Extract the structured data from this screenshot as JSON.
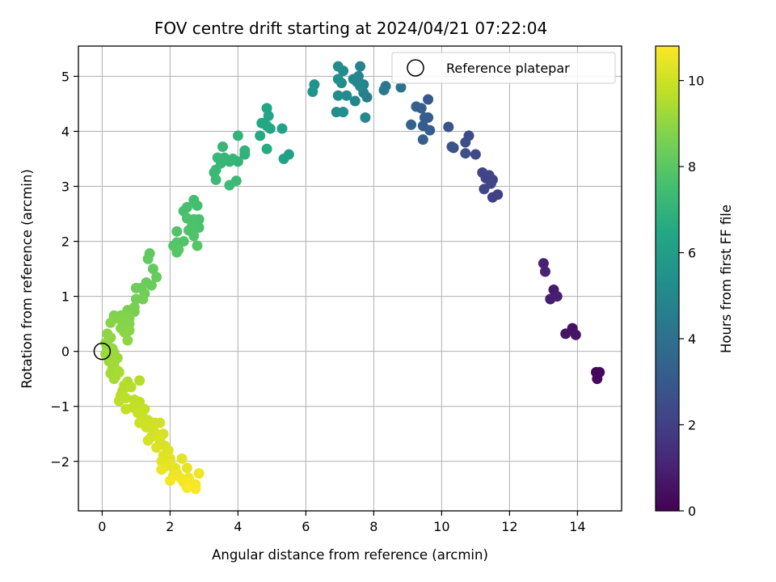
{
  "chart_data": {
    "type": "scatter",
    "title": "FOV centre drift starting at 2024/04/21 07:22:04",
    "xlabel": "Angular distance from reference (arcmin)",
    "ylabel": "Rotation from reference (arcmin)",
    "xlim": [
      -0.7,
      15.3
    ],
    "ylim": [
      -2.9,
      5.55
    ],
    "xticks": [
      0,
      2,
      4,
      6,
      8,
      10,
      12,
      14
    ],
    "yticks": [
      -2,
      -1,
      0,
      1,
      2,
      3,
      4,
      5
    ],
    "grid": true,
    "legend": {
      "position": "top-right",
      "label": "Reference platepar"
    },
    "reference_point": {
      "x": 0,
      "y": 0
    },
    "colorbar": {
      "label": "Hours from first FF file",
      "range": [
        0,
        10.8
      ],
      "ticks": [
        0,
        2,
        4,
        6,
        8,
        10
      ],
      "colormap": "viridis"
    },
    "points": [
      {
        "x": 14.55,
        "y": -0.38,
        "c": 0.2
      },
      {
        "x": 14.65,
        "y": -0.38,
        "c": 0.2
      },
      {
        "x": 14.58,
        "y": -0.5,
        "c": 0.25
      },
      {
        "x": 13.85,
        "y": 0.42,
        "c": 0.5
      },
      {
        "x": 13.95,
        "y": 0.3,
        "c": 0.55
      },
      {
        "x": 13.65,
        "y": 0.32,
        "c": 0.6
      },
      {
        "x": 13.3,
        "y": 1.12,
        "c": 0.8
      },
      {
        "x": 13.2,
        "y": 0.95,
        "c": 0.85
      },
      {
        "x": 13.4,
        "y": 1.0,
        "c": 0.9
      },
      {
        "x": 13.0,
        "y": 1.6,
        "c": 1.0
      },
      {
        "x": 13.05,
        "y": 1.45,
        "c": 1.05
      },
      {
        "x": 11.65,
        "y": 2.85,
        "c": 2.0
      },
      {
        "x": 11.5,
        "y": 2.8,
        "c": 2.05
      },
      {
        "x": 11.5,
        "y": 3.12,
        "c": 2.1
      },
      {
        "x": 11.3,
        "y": 3.15,
        "c": 2.15
      },
      {
        "x": 11.2,
        "y": 3.25,
        "c": 2.2
      },
      {
        "x": 11.4,
        "y": 3.2,
        "c": 2.2
      },
      {
        "x": 11.25,
        "y": 2.95,
        "c": 2.25
      },
      {
        "x": 11.45,
        "y": 3.05,
        "c": 2.3
      },
      {
        "x": 11.0,
        "y": 3.58,
        "c": 2.4
      },
      {
        "x": 10.8,
        "y": 3.92,
        "c": 2.5
      },
      {
        "x": 10.7,
        "y": 3.8,
        "c": 2.55
      },
      {
        "x": 10.7,
        "y": 3.6,
        "c": 2.6
      },
      {
        "x": 10.35,
        "y": 3.7,
        "c": 2.7
      },
      {
        "x": 10.3,
        "y": 3.72,
        "c": 2.75
      },
      {
        "x": 10.2,
        "y": 4.08,
        "c": 2.8
      },
      {
        "x": 9.6,
        "y": 4.58,
        "c": 3.0
      },
      {
        "x": 9.6,
        "y": 4.25,
        "c": 3.1
      },
      {
        "x": 9.65,
        "y": 4.02,
        "c": 3.15
      },
      {
        "x": 9.5,
        "y": 4.25,
        "c": 3.2
      },
      {
        "x": 9.45,
        "y": 4.1,
        "c": 3.2
      },
      {
        "x": 9.45,
        "y": 3.85,
        "c": 3.25
      },
      {
        "x": 9.4,
        "y": 4.42,
        "c": 3.3
      },
      {
        "x": 9.25,
        "y": 4.45,
        "c": 3.35
      },
      {
        "x": 9.1,
        "y": 4.12,
        "c": 3.4
      },
      {
        "x": 8.8,
        "y": 4.8,
        "c": 4.1
      },
      {
        "x": 8.35,
        "y": 4.82,
        "c": 4.3
      },
      {
        "x": 8.3,
        "y": 4.75,
        "c": 4.35
      },
      {
        "x": 7.8,
        "y": 4.62,
        "c": 4.6
      },
      {
        "x": 7.7,
        "y": 4.7,
        "c": 4.7
      },
      {
        "x": 7.7,
        "y": 4.85,
        "c": 4.7
      },
      {
        "x": 7.6,
        "y": 5.18,
        "c": 4.8
      },
      {
        "x": 7.55,
        "y": 5.0,
        "c": 4.85
      },
      {
        "x": 7.5,
        "y": 4.9,
        "c": 4.9
      },
      {
        "x": 7.45,
        "y": 4.55,
        "c": 4.9
      },
      {
        "x": 7.4,
        "y": 4.95,
        "c": 4.95
      },
      {
        "x": 7.6,
        "y": 4.82,
        "c": 5.0
      },
      {
        "x": 7.75,
        "y": 4.25,
        "c": 5.0
      },
      {
        "x": 7.2,
        "y": 4.65,
        "c": 5.1
      },
      {
        "x": 7.1,
        "y": 5.1,
        "c": 5.1
      },
      {
        "x": 7.05,
        "y": 4.88,
        "c": 5.15
      },
      {
        "x": 6.95,
        "y": 5.18,
        "c": 5.2
      },
      {
        "x": 6.95,
        "y": 4.65,
        "c": 5.25
      },
      {
        "x": 6.9,
        "y": 4.35,
        "c": 5.3
      },
      {
        "x": 7.1,
        "y": 4.35,
        "c": 5.3
      },
      {
        "x": 6.95,
        "y": 4.95,
        "c": 5.35
      },
      {
        "x": 6.25,
        "y": 4.85,
        "c": 5.5
      },
      {
        "x": 6.2,
        "y": 4.72,
        "c": 5.55
      },
      {
        "x": 5.5,
        "y": 3.58,
        "c": 6.1
      },
      {
        "x": 5.35,
        "y": 3.5,
        "c": 6.15
      },
      {
        "x": 5.3,
        "y": 4.05,
        "c": 6.2
      },
      {
        "x": 4.95,
        "y": 4.05,
        "c": 6.3
      },
      {
        "x": 4.85,
        "y": 4.42,
        "c": 6.4
      },
      {
        "x": 4.9,
        "y": 4.28,
        "c": 6.4
      },
      {
        "x": 4.85,
        "y": 4.1,
        "c": 6.5
      },
      {
        "x": 4.7,
        "y": 4.15,
        "c": 6.5
      },
      {
        "x": 4.65,
        "y": 3.92,
        "c": 6.55
      },
      {
        "x": 4.85,
        "y": 3.68,
        "c": 6.6
      },
      {
        "x": 4.2,
        "y": 3.58,
        "c": 6.9
      },
      {
        "x": 4.2,
        "y": 3.65,
        "c": 6.95
      },
      {
        "x": 4.0,
        "y": 3.92,
        "c": 7.0
      },
      {
        "x": 4.0,
        "y": 3.45,
        "c": 7.05
      },
      {
        "x": 3.85,
        "y": 3.5,
        "c": 7.1
      },
      {
        "x": 3.75,
        "y": 3.45,
        "c": 7.1
      },
      {
        "x": 3.6,
        "y": 3.52,
        "c": 7.15
      },
      {
        "x": 3.55,
        "y": 3.72,
        "c": 7.15
      },
      {
        "x": 3.5,
        "y": 3.42,
        "c": 7.2
      },
      {
        "x": 3.4,
        "y": 3.52,
        "c": 7.2
      },
      {
        "x": 3.35,
        "y": 3.3,
        "c": 7.25
      },
      {
        "x": 3.3,
        "y": 3.25,
        "c": 7.25
      },
      {
        "x": 3.35,
        "y": 3.12,
        "c": 7.3
      },
      {
        "x": 3.95,
        "y": 3.1,
        "c": 7.3
      },
      {
        "x": 3.75,
        "y": 3.02,
        "c": 7.35
      },
      {
        "x": 2.7,
        "y": 2.75,
        "c": 7.5
      },
      {
        "x": 2.8,
        "y": 2.65,
        "c": 7.55
      },
      {
        "x": 2.5,
        "y": 2.62,
        "c": 7.6
      },
      {
        "x": 2.4,
        "y": 2.55,
        "c": 7.6
      },
      {
        "x": 2.85,
        "y": 2.4,
        "c": 7.65
      },
      {
        "x": 2.7,
        "y": 2.4,
        "c": 7.65
      },
      {
        "x": 2.5,
        "y": 2.42,
        "c": 7.7
      },
      {
        "x": 2.85,
        "y": 2.25,
        "c": 7.7
      },
      {
        "x": 2.65,
        "y": 2.28,
        "c": 7.75
      },
      {
        "x": 2.55,
        "y": 2.2,
        "c": 7.75
      },
      {
        "x": 2.2,
        "y": 2.18,
        "c": 7.8
      },
      {
        "x": 2.7,
        "y": 2.1,
        "c": 7.8
      },
      {
        "x": 2.4,
        "y": 2.0,
        "c": 7.85
      },
      {
        "x": 2.2,
        "y": 1.98,
        "c": 7.85
      },
      {
        "x": 2.8,
        "y": 1.92,
        "c": 7.9
      },
      {
        "x": 2.1,
        "y": 1.92,
        "c": 7.9
      },
      {
        "x": 2.2,
        "y": 1.8,
        "c": 7.95
      },
      {
        "x": 2.25,
        "y": 1.85,
        "c": 7.95
      },
      {
        "x": 1.4,
        "y": 1.78,
        "c": 8.1
      },
      {
        "x": 1.35,
        "y": 1.68,
        "c": 8.15
      },
      {
        "x": 1.5,
        "y": 1.5,
        "c": 8.2
      },
      {
        "x": 1.6,
        "y": 1.35,
        "c": 8.25
      },
      {
        "x": 1.3,
        "y": 1.25,
        "c": 8.3
      },
      {
        "x": 1.45,
        "y": 1.2,
        "c": 8.3
      },
      {
        "x": 1.0,
        "y": 1.15,
        "c": 8.4
      },
      {
        "x": 1.15,
        "y": 1.15,
        "c": 8.4
      },
      {
        "x": 1.25,
        "y": 1.05,
        "c": 8.45
      },
      {
        "x": 1.0,
        "y": 0.95,
        "c": 8.5
      },
      {
        "x": 1.2,
        "y": 0.95,
        "c": 8.5
      },
      {
        "x": 0.95,
        "y": 0.8,
        "c": 8.55
      },
      {
        "x": 0.75,
        "y": 0.75,
        "c": 8.6
      },
      {
        "x": 0.95,
        "y": 0.72,
        "c": 8.6
      },
      {
        "x": 0.7,
        "y": 0.68,
        "c": 8.65
      },
      {
        "x": 0.55,
        "y": 0.65,
        "c": 8.7
      },
      {
        "x": 0.35,
        "y": 0.65,
        "c": 8.7
      },
      {
        "x": 0.45,
        "y": 0.6,
        "c": 8.75
      },
      {
        "x": 0.8,
        "y": 0.6,
        "c": 8.75
      },
      {
        "x": 0.6,
        "y": 0.55,
        "c": 8.8
      },
      {
        "x": 0.8,
        "y": 0.5,
        "c": 8.8
      },
      {
        "x": 0.25,
        "y": 0.52,
        "c": 8.85
      },
      {
        "x": 0.55,
        "y": 0.42,
        "c": 8.85
      },
      {
        "x": 0.8,
        "y": 0.38,
        "c": 8.9
      },
      {
        "x": 0.65,
        "y": 0.35,
        "c": 8.9
      },
      {
        "x": 0.75,
        "y": 0.2,
        "c": 8.95
      },
      {
        "x": 0.15,
        "y": 0.32,
        "c": 8.95
      },
      {
        "x": 0.25,
        "y": 0.25,
        "c": 9.0
      },
      {
        "x": 0.1,
        "y": 0.15,
        "c": 9.0
      },
      {
        "x": 0.2,
        "y": 0.08,
        "c": 9.05
      },
      {
        "x": 0.15,
        "y": 0.02,
        "c": 9.05
      },
      {
        "x": 0.3,
        "y": 0.05,
        "c": 9.1
      },
      {
        "x": 0.35,
        "y": -0.02,
        "c": 9.1
      },
      {
        "x": 0.1,
        "y": -0.05,
        "c": 9.15
      },
      {
        "x": 0.25,
        "y": -0.1,
        "c": 9.15
      },
      {
        "x": 0.45,
        "y": -0.12,
        "c": 9.2
      },
      {
        "x": 0.2,
        "y": -0.18,
        "c": 9.2
      },
      {
        "x": 0.35,
        "y": -0.22,
        "c": 9.25
      },
      {
        "x": 0.3,
        "y": -0.32,
        "c": 9.25
      },
      {
        "x": 0.45,
        "y": -0.35,
        "c": 9.3
      },
      {
        "x": 0.25,
        "y": -0.4,
        "c": 9.3
      },
      {
        "x": 0.4,
        "y": -0.45,
        "c": 9.35
      },
      {
        "x": 0.35,
        "y": -0.5,
        "c": 9.35
      },
      {
        "x": 0.5,
        "y": -0.38,
        "c": 9.4
      },
      {
        "x": 0.75,
        "y": -0.55,
        "c": 9.5
      },
      {
        "x": 0.65,
        "y": -0.62,
        "c": 9.55
      },
      {
        "x": 0.6,
        "y": -0.72,
        "c": 9.6
      },
      {
        "x": 1.1,
        "y": -0.53,
        "c": 9.6
      },
      {
        "x": 0.85,
        "y": -0.65,
        "c": 9.65
      },
      {
        "x": 0.55,
        "y": -0.8,
        "c": 9.65
      },
      {
        "x": 0.7,
        "y": -0.85,
        "c": 9.7
      },
      {
        "x": 0.5,
        "y": -0.9,
        "c": 9.7
      },
      {
        "x": 0.95,
        "y": -0.88,
        "c": 9.75
      },
      {
        "x": 1.1,
        "y": -0.92,
        "c": 9.75
      },
      {
        "x": 1.05,
        "y": -1.0,
        "c": 9.8
      },
      {
        "x": 0.9,
        "y": -1.02,
        "c": 9.8
      },
      {
        "x": 0.7,
        "y": -1.05,
        "c": 9.85
      },
      {
        "x": 1.25,
        "y": -1.05,
        "c": 9.85
      },
      {
        "x": 1.05,
        "y": -1.12,
        "c": 9.9
      },
      {
        "x": 1.2,
        "y": -1.2,
        "c": 9.9
      },
      {
        "x": 1.1,
        "y": -1.3,
        "c": 9.95
      },
      {
        "x": 1.35,
        "y": -1.25,
        "c": 9.95
      },
      {
        "x": 1.55,
        "y": -1.3,
        "c": 10.0
      },
      {
        "x": 1.3,
        "y": -1.38,
        "c": 10.0
      },
      {
        "x": 1.5,
        "y": -1.42,
        "c": 10.05
      },
      {
        "x": 1.7,
        "y": -1.3,
        "c": 10.05
      },
      {
        "x": 1.45,
        "y": -1.55,
        "c": 10.1
      },
      {
        "x": 1.6,
        "y": -1.5,
        "c": 10.1
      },
      {
        "x": 1.8,
        "y": -1.5,
        "c": 10.15
      },
      {
        "x": 1.35,
        "y": -1.62,
        "c": 10.15
      },
      {
        "x": 1.7,
        "y": -1.62,
        "c": 10.2
      },
      {
        "x": 1.85,
        "y": -1.72,
        "c": 10.2
      },
      {
        "x": 1.6,
        "y": -1.75,
        "c": 10.25
      },
      {
        "x": 1.95,
        "y": -1.8,
        "c": 10.25
      },
      {
        "x": 1.8,
        "y": -1.9,
        "c": 10.3
      },
      {
        "x": 2.0,
        "y": -1.95,
        "c": 10.3
      },
      {
        "x": 1.75,
        "y": -2.0,
        "c": 10.35
      },
      {
        "x": 2.35,
        "y": -1.95,
        "c": 10.35
      },
      {
        "x": 2.0,
        "y": -2.05,
        "c": 10.4
      },
      {
        "x": 1.85,
        "y": -2.1,
        "c": 10.4
      },
      {
        "x": 2.15,
        "y": -2.12,
        "c": 10.45
      },
      {
        "x": 2.5,
        "y": -2.12,
        "c": 10.45
      },
      {
        "x": 1.75,
        "y": -2.15,
        "c": 10.5
      },
      {
        "x": 2.2,
        "y": -2.22,
        "c": 10.5
      },
      {
        "x": 2.1,
        "y": -2.25,
        "c": 10.55
      },
      {
        "x": 2.85,
        "y": -2.22,
        "c": 10.55
      },
      {
        "x": 2.55,
        "y": -2.3,
        "c": 10.6
      },
      {
        "x": 2.3,
        "y": -2.3,
        "c": 10.6
      },
      {
        "x": 2.0,
        "y": -2.35,
        "c": 10.65
      },
      {
        "x": 2.4,
        "y": -2.38,
        "c": 10.65
      },
      {
        "x": 2.6,
        "y": -2.4,
        "c": 10.7
      },
      {
        "x": 2.75,
        "y": -2.42,
        "c": 10.7
      },
      {
        "x": 2.5,
        "y": -2.48,
        "c": 10.75
      },
      {
        "x": 2.75,
        "y": -2.5,
        "c": 10.75
      }
    ]
  }
}
